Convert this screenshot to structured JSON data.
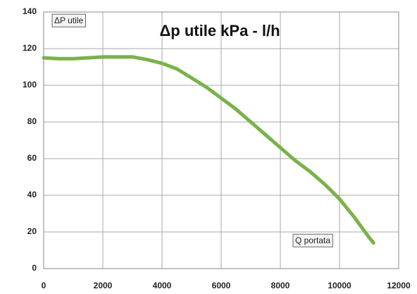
{
  "chart_data": {
    "type": "line",
    "title": "Δp utile kPa - l/h",
    "ylabel": "ΔP utile",
    "xlabel": "Q portata",
    "x": [
      0,
      500,
      1000,
      1500,
      2000,
      2500,
      3000,
      3500,
      4000,
      4500,
      5000,
      5500,
      6000,
      6500,
      7000,
      7500,
      8000,
      8500,
      9000,
      9500,
      10000,
      10500,
      11000,
      11150
    ],
    "values": [
      115,
      114.5,
      114.5,
      115,
      115.5,
      115.5,
      115.5,
      114,
      112,
      109,
      104,
      99,
      93,
      87,
      80,
      73,
      66,
      59,
      53,
      46,
      38,
      28,
      17,
      14
    ],
    "color": "#79b24a",
    "xlim": [
      0,
      12000
    ],
    "xticks": [
      0,
      2000,
      4000,
      6000,
      8000,
      10000,
      12000
    ],
    "ylim": [
      0,
      140
    ],
    "yticks": [
      0,
      20,
      40,
      60,
      80,
      100,
      120,
      140
    ],
    "grid": true
  }
}
